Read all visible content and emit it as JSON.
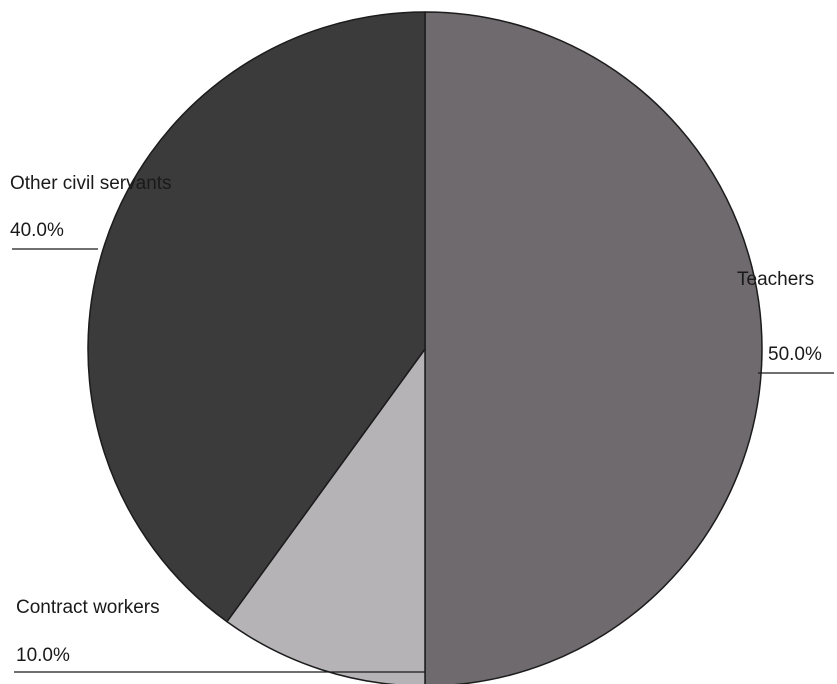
{
  "chart_data": {
    "type": "pie",
    "title": "",
    "slices": [
      {
        "label": "Teachers",
        "value": 50.0,
        "value_label": "50.0%",
        "color": "#6f6a6d"
      },
      {
        "label": "Contract workers",
        "value": 10.0,
        "value_label": "10.0%",
        "color": "#b5b3b6"
      },
      {
        "label": "Other civil servants",
        "value": 40.0,
        "value_label": "40.0%",
        "color": "#3b3b3b"
      }
    ],
    "start_direction": "top",
    "direction": "clockwise",
    "legend": "none"
  }
}
